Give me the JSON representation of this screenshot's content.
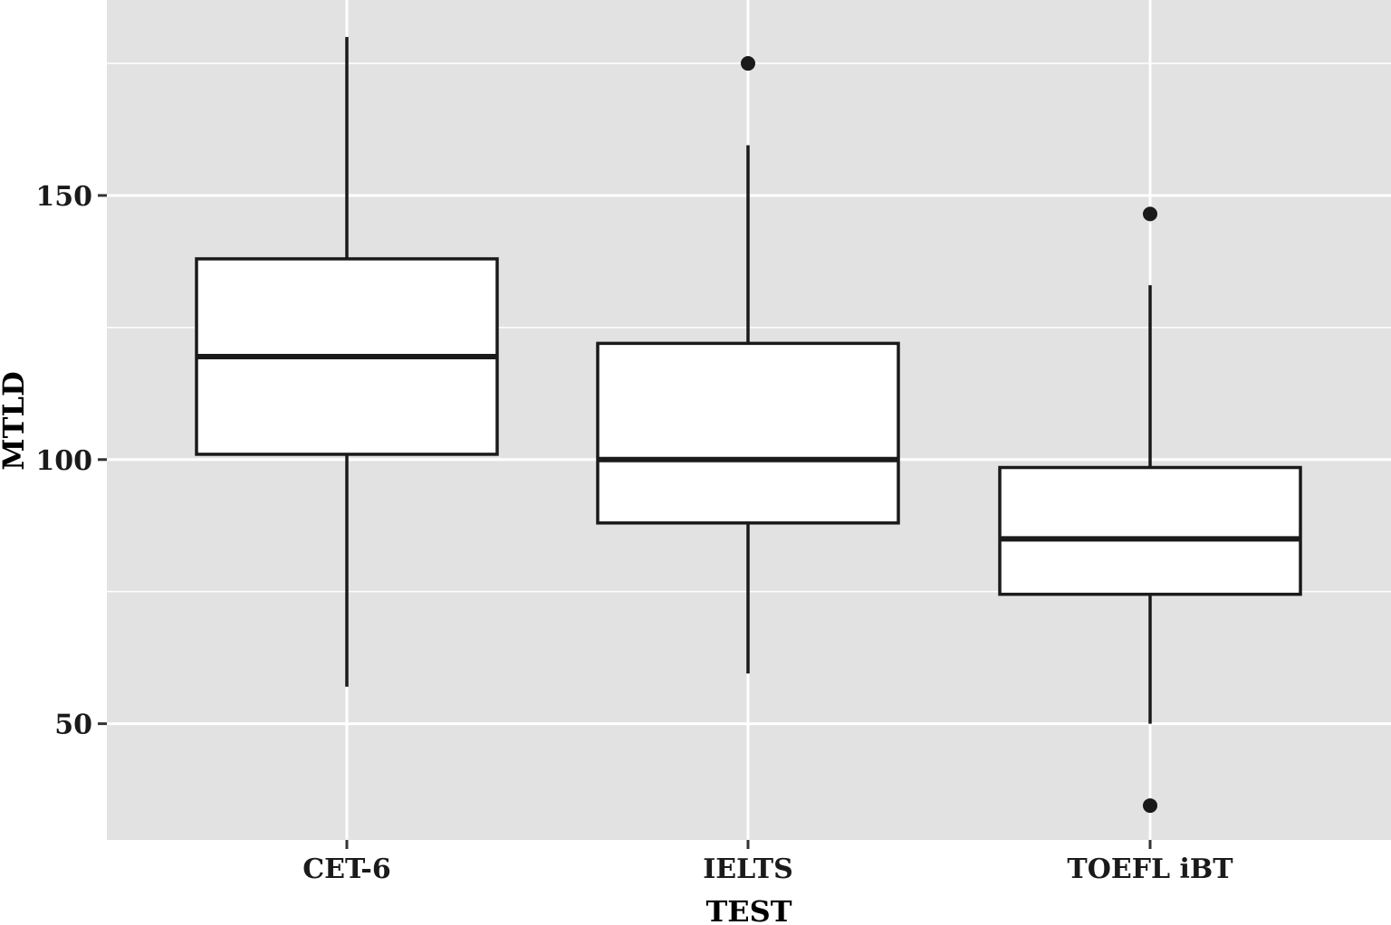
{
  "chart_data": {
    "type": "boxplot",
    "title": "",
    "xlabel": "TEST",
    "ylabel": "MTLD",
    "categories": [
      "CET-6",
      "IELTS",
      "TOEFL iBT"
    ],
    "boxes": [
      {
        "category": "CET-6",
        "whisker_low": 57,
        "q1": 101,
        "median": 119.5,
        "q3": 138,
        "whisker_high": 180,
        "outliers": []
      },
      {
        "category": "IELTS",
        "whisker_low": 59.5,
        "q1": 88,
        "median": 100,
        "q3": 122,
        "whisker_high": 159.5,
        "outliers": [
          175
        ]
      },
      {
        "category": "TOEFL iBT",
        "whisker_low": 50,
        "q1": 74.5,
        "median": 85,
        "q3": 98.5,
        "whisker_high": 133,
        "outliers": [
          146.5,
          34.5
        ]
      }
    ],
    "ylim": [
      28,
      187
    ],
    "yticks": [
      50,
      100,
      150
    ],
    "ytick_labels": [
      "50",
      "100",
      "150"
    ],
    "grid": true,
    "colors": {
      "panel": "#e2e2e2",
      "grid": "#ffffff",
      "box_fill": "#ffffff",
      "box_stroke": "#1a1a1a"
    }
  }
}
